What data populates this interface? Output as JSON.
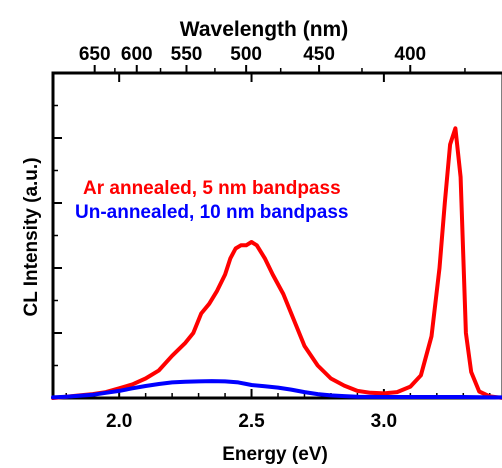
{
  "chart_data": {
    "type": "line",
    "title": "",
    "xlabel": "Energy (eV)",
    "ylabel": "CL Intensity (a.u.)",
    "top_axis_label": "Wavelength (nm)",
    "xlim": [
      1.75,
      3.45
    ],
    "ylim": [
      0,
      1.0
    ],
    "x_ticks": [
      2.0,
      2.5,
      3.0
    ],
    "x_tick_labels": [
      "2.0",
      "2.5",
      "3.0"
    ],
    "top_ticks_nm": [
      650,
      600,
      550,
      500,
      450,
      400
    ],
    "top_tick_labels": [
      "650",
      "600",
      "550",
      "500",
      "450",
      "400"
    ],
    "y_tick_labels_shown": false,
    "grid": false,
    "legend_placement": "center-left, text labels colored by series",
    "series": [
      {
        "name": "Ar annealed, 5 nm bandpass",
        "color": "#ff0000",
        "x": [
          1.75,
          1.8,
          1.85,
          1.9,
          1.95,
          2.0,
          2.05,
          2.1,
          2.15,
          2.2,
          2.25,
          2.28,
          2.31,
          2.34,
          2.37,
          2.4,
          2.42,
          2.44,
          2.46,
          2.48,
          2.5,
          2.52,
          2.55,
          2.58,
          2.62,
          2.66,
          2.7,
          2.75,
          2.8,
          2.85,
          2.9,
          2.95,
          3.0,
          3.05,
          3.1,
          3.14,
          3.18,
          3.21,
          3.23,
          3.25,
          3.27,
          3.29,
          3.31,
          3.33,
          3.36,
          3.4,
          3.45
        ],
        "values": [
          0.0,
          0.004,
          0.008,
          0.012,
          0.018,
          0.03,
          0.042,
          0.06,
          0.085,
          0.13,
          0.17,
          0.2,
          0.26,
          0.29,
          0.33,
          0.38,
          0.43,
          0.46,
          0.47,
          0.47,
          0.48,
          0.47,
          0.43,
          0.38,
          0.32,
          0.24,
          0.16,
          0.1,
          0.06,
          0.038,
          0.022,
          0.016,
          0.014,
          0.018,
          0.035,
          0.07,
          0.19,
          0.4,
          0.6,
          0.78,
          0.83,
          0.68,
          0.2,
          0.08,
          0.02,
          0.005,
          0.0
        ]
      },
      {
        "name": "Un-annealed, 10 nm bandpass",
        "color": "#0000ff",
        "x": [
          1.75,
          1.8,
          1.85,
          1.9,
          1.95,
          2.0,
          2.05,
          2.1,
          2.15,
          2.2,
          2.25,
          2.3,
          2.35,
          2.4,
          2.45,
          2.5,
          2.55,
          2.6,
          2.65,
          2.7,
          2.75,
          2.8,
          2.85,
          2.9,
          3.0,
          3.1,
          3.2,
          3.3,
          3.4,
          3.45
        ],
        "values": [
          0.002,
          0.004,
          0.007,
          0.01,
          0.016,
          0.022,
          0.03,
          0.037,
          0.043,
          0.048,
          0.05,
          0.051,
          0.052,
          0.051,
          0.048,
          0.04,
          0.036,
          0.032,
          0.026,
          0.018,
          0.012,
          0.008,
          0.006,
          0.004,
          0.003,
          0.003,
          0.003,
          0.003,
          0.002,
          0.002
        ]
      }
    ]
  }
}
